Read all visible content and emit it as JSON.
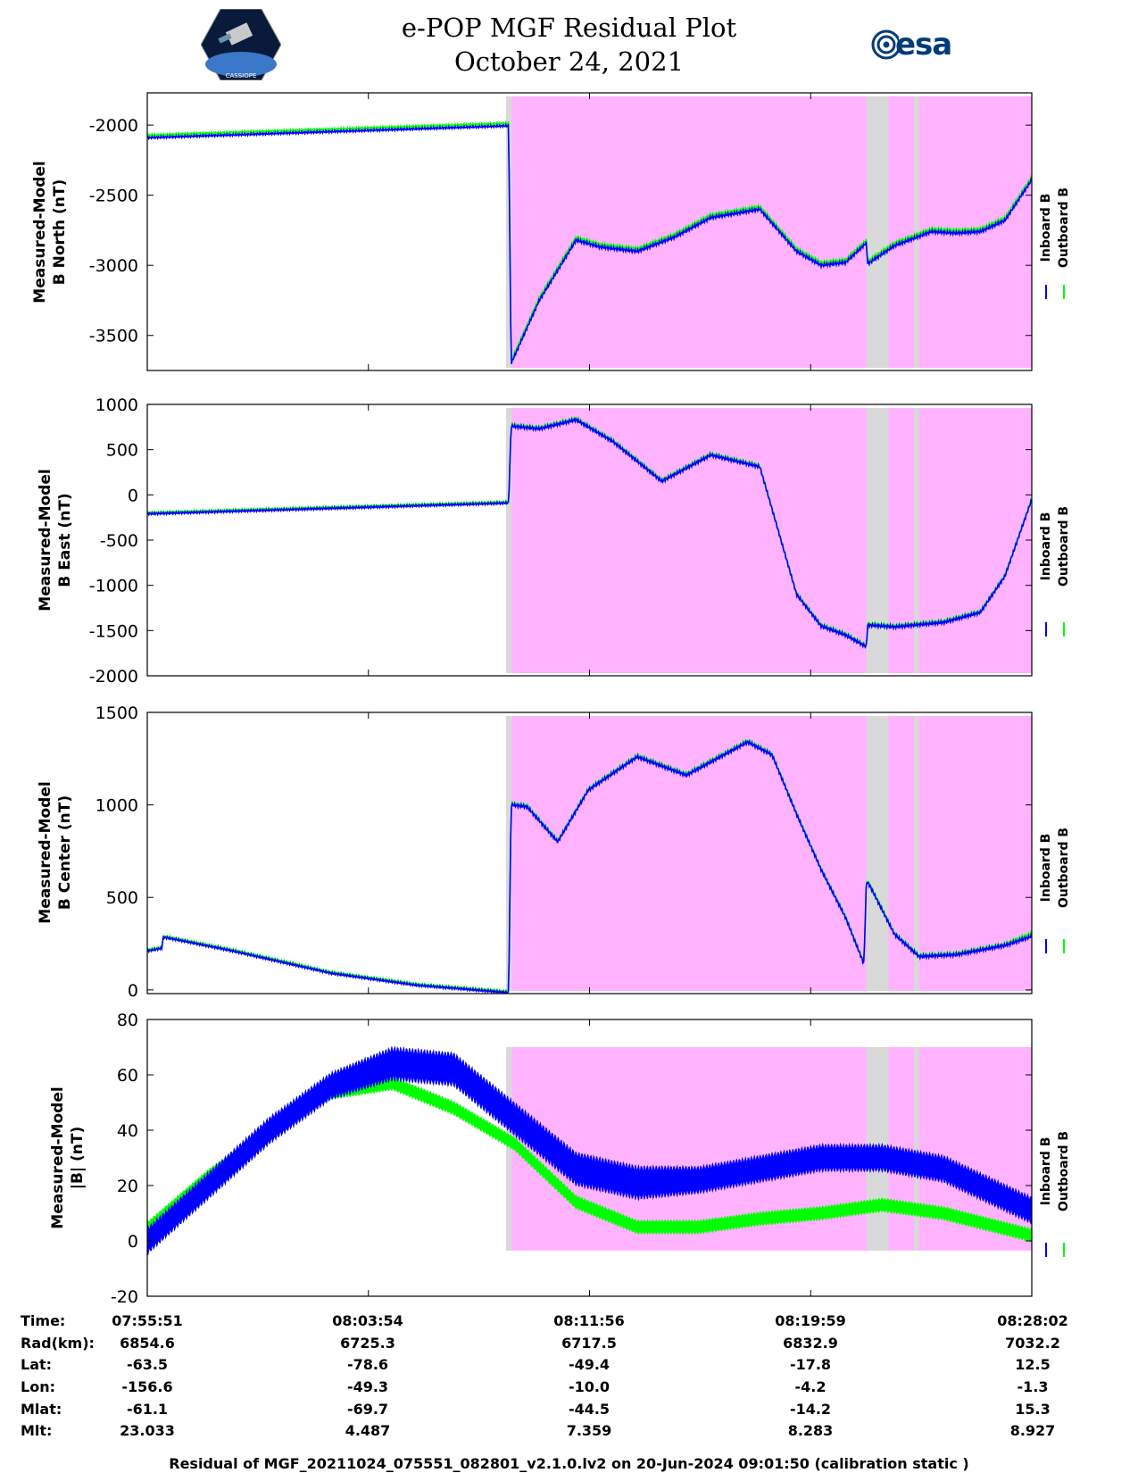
{
  "header": {
    "title": "e-POP MGF Residual Plot",
    "date": "October 24, 2021",
    "left_logo": "cassiope-logo",
    "left_logo_text": "CASSIOPE",
    "right_logo": "esa-logo",
    "right_logo_text": "esa"
  },
  "colors": {
    "inboard": "#0000ff",
    "outboard": "#00ff00",
    "shade_magenta": "#ffb3ff",
    "shade_gray": "#d9d9d9"
  },
  "legend": {
    "inboard": "Inboard B",
    "outboard": "Outboard B"
  },
  "chart_data": [
    {
      "type": "line",
      "id": "north",
      "ylabel": [
        "Measured-Model",
        "B North (nT)"
      ],
      "ylim": [
        -3750,
        -1770
      ],
      "yticks": [
        -2000,
        -2500,
        -3000,
        -3500
      ],
      "ytick_labels": [
        "-2000",
        "-2500",
        "-3000",
        "-3500"
      ],
      "x_minutes": [
        0,
        29.5,
        29.7,
        32,
        35,
        37,
        40,
        43,
        46,
        50,
        53,
        55,
        57,
        58.7,
        58.8,
        61,
        64,
        66,
        68,
        70,
        72.2
      ],
      "series": [
        {
          "name": "Inboard B",
          "values": [
            -2090,
            -2005,
            -3700,
            -3250,
            -2820,
            -2870,
            -2900,
            -2800,
            -2660,
            -2600,
            -2900,
            -3000,
            -2980,
            -2840,
            -2990,
            -2860,
            -2760,
            -2770,
            -2760,
            -2680,
            -2390
          ]
        },
        {
          "name": "Outboard B",
          "values": [
            -2080,
            -1995,
            -3690,
            -3240,
            -2810,
            -2860,
            -2890,
            -2790,
            -2650,
            -2590,
            -2890,
            -2990,
            -2970,
            -2830,
            -2980,
            -2850,
            -2750,
            -2760,
            -2750,
            -2670,
            -2380
          ]
        }
      ]
    },
    {
      "type": "line",
      "id": "east",
      "ylabel": [
        "Measured-Model",
        "B East (nT)"
      ],
      "ylim": [
        -2000,
        1000
      ],
      "yticks": [
        1000,
        500,
        0,
        -500,
        -1000,
        -1500,
        -2000
      ],
      "ytick_labels": [
        "1000",
        "500",
        "0",
        "-500",
        "-1000",
        "-1500",
        "-2000"
      ],
      "x_minutes": [
        0,
        29.5,
        29.7,
        32,
        35,
        38,
        42,
        46,
        50,
        53,
        55,
        57,
        58.7,
        58.8,
        61,
        65,
        68,
        70,
        72.2
      ],
      "series": [
        {
          "name": "Inboard B",
          "values": [
            -210,
            -90,
            760,
            730,
            830,
            590,
            150,
            440,
            310,
            -1100,
            -1450,
            -1550,
            -1680,
            -1440,
            -1460,
            -1410,
            -1300,
            -900,
            -50
          ]
        },
        {
          "name": "Outboard B",
          "values": [
            -210,
            -90,
            760,
            730,
            830,
            590,
            150,
            440,
            310,
            -1100,
            -1450,
            -1550,
            -1680,
            -1440,
            -1460,
            -1410,
            -1300,
            -900,
            -50
          ]
        }
      ]
    },
    {
      "type": "line",
      "id": "center",
      "ylabel": [
        "Measured-Model",
        "B Center (nT)"
      ],
      "ylim": [
        -20,
        1500
      ],
      "yticks": [
        1500,
        1000,
        500,
        0
      ],
      "ytick_labels": [
        "1500",
        "1000",
        "500",
        "0"
      ],
      "x_minutes": [
        0,
        1.2,
        1.3,
        2.5,
        7,
        15,
        22,
        29.5,
        29.7,
        31,
        33.5,
        36,
        40,
        44,
        49,
        51,
        53,
        55,
        57,
        58.5,
        58.7,
        59,
        61,
        63,
        66,
        70,
        72.2
      ],
      "series": [
        {
          "name": "Inboard B",
          "values": [
            210,
            225,
            285,
            270,
            210,
            90,
            25,
            -15,
            1000,
            990,
            800,
            1080,
            1260,
            1160,
            1340,
            1270,
            950,
            650,
            390,
            140,
            590,
            560,
            300,
            180,
            190,
            240,
            290
          ]
        },
        {
          "name": "Outboard B",
          "values": [
            210,
            225,
            285,
            270,
            210,
            90,
            25,
            -15,
            1000,
            990,
            800,
            1080,
            1260,
            1160,
            1340,
            1270,
            950,
            650,
            390,
            140,
            590,
            560,
            300,
            180,
            190,
            240,
            300
          ]
        }
      ]
    },
    {
      "type": "area",
      "id": "magnitude",
      "ylabel": [
        "Measured-Model",
        "|B| (nT)"
      ],
      "ylim": [
        -20,
        80
      ],
      "yticks": [
        80,
        60,
        40,
        20,
        0,
        -20
      ],
      "ytick_labels": [
        "80",
        "60",
        "40",
        "20",
        "0",
        "-20"
      ],
      "shade_ylim": [
        -3.5,
        70
      ],
      "x_minutes": [
        0,
        5,
        10,
        15,
        20,
        25,
        30,
        35,
        40,
        45,
        50,
        55,
        60,
        65,
        72.2
      ],
      "series": [
        {
          "name": "Inboard B",
          "center": [
            0,
            20,
            40,
            56,
            64,
            62,
            44,
            26,
            21,
            22,
            26,
            30,
            30,
            26,
            11
          ],
          "halfwidth": [
            4,
            4,
            4,
            4,
            5,
            5,
            5,
            5,
            5,
            4,
            4,
            4,
            4,
            4,
            4
          ]
        },
        {
          "name": "Outboard B",
          "center": [
            5,
            24,
            40,
            53,
            57,
            48,
            35,
            14,
            5,
            5,
            8,
            10,
            13,
            10,
            2
          ],
          "halfwidth": [
            1.5,
            1.5,
            1.5,
            1.5,
            2,
            2,
            2,
            2,
            2,
            2,
            2,
            2,
            2,
            2,
            2
          ]
        }
      ]
    }
  ],
  "shading": {
    "magenta_start_min": 29.3,
    "magenta_end_min": 72.2,
    "gray_bands_min": [
      [
        29.3,
        29.75
      ],
      [
        58.7,
        60.5
      ],
      [
        62.6,
        63.0
      ]
    ]
  },
  "x_axis": {
    "range_minutes": [
      0,
      72.2
    ],
    "tick_minutes": [
      0,
      18.05,
      36.1,
      54.15,
      72.2
    ]
  },
  "ephemeris": {
    "labels": [
      "Time:",
      "Rad(km):",
      "Lat:",
      "Lon:",
      "Mlat:",
      "Mlt:"
    ],
    "columns": [
      [
        "07:55:51",
        "6854.6",
        "-63.5",
        "-156.6",
        "-61.1",
        "23.033"
      ],
      [
        "08:03:54",
        "6725.3",
        "-78.6",
        "-49.3",
        "-69.7",
        "4.487"
      ],
      [
        "08:11:56",
        "6717.5",
        "-49.4",
        "-10.0",
        "-44.5",
        "7.359"
      ],
      [
        "08:19:59",
        "6832.9",
        "-17.8",
        "-4.2",
        "-14.2",
        "8.283"
      ],
      [
        "08:28:02",
        "7032.2",
        "12.5",
        "-1.3",
        "15.3",
        "8.927"
      ]
    ]
  },
  "footer": "Residual of MGF_20211024_075551_082801_v2.1.0.lv2 on 20-Jun-2024 09:01:50 (calibration static )"
}
